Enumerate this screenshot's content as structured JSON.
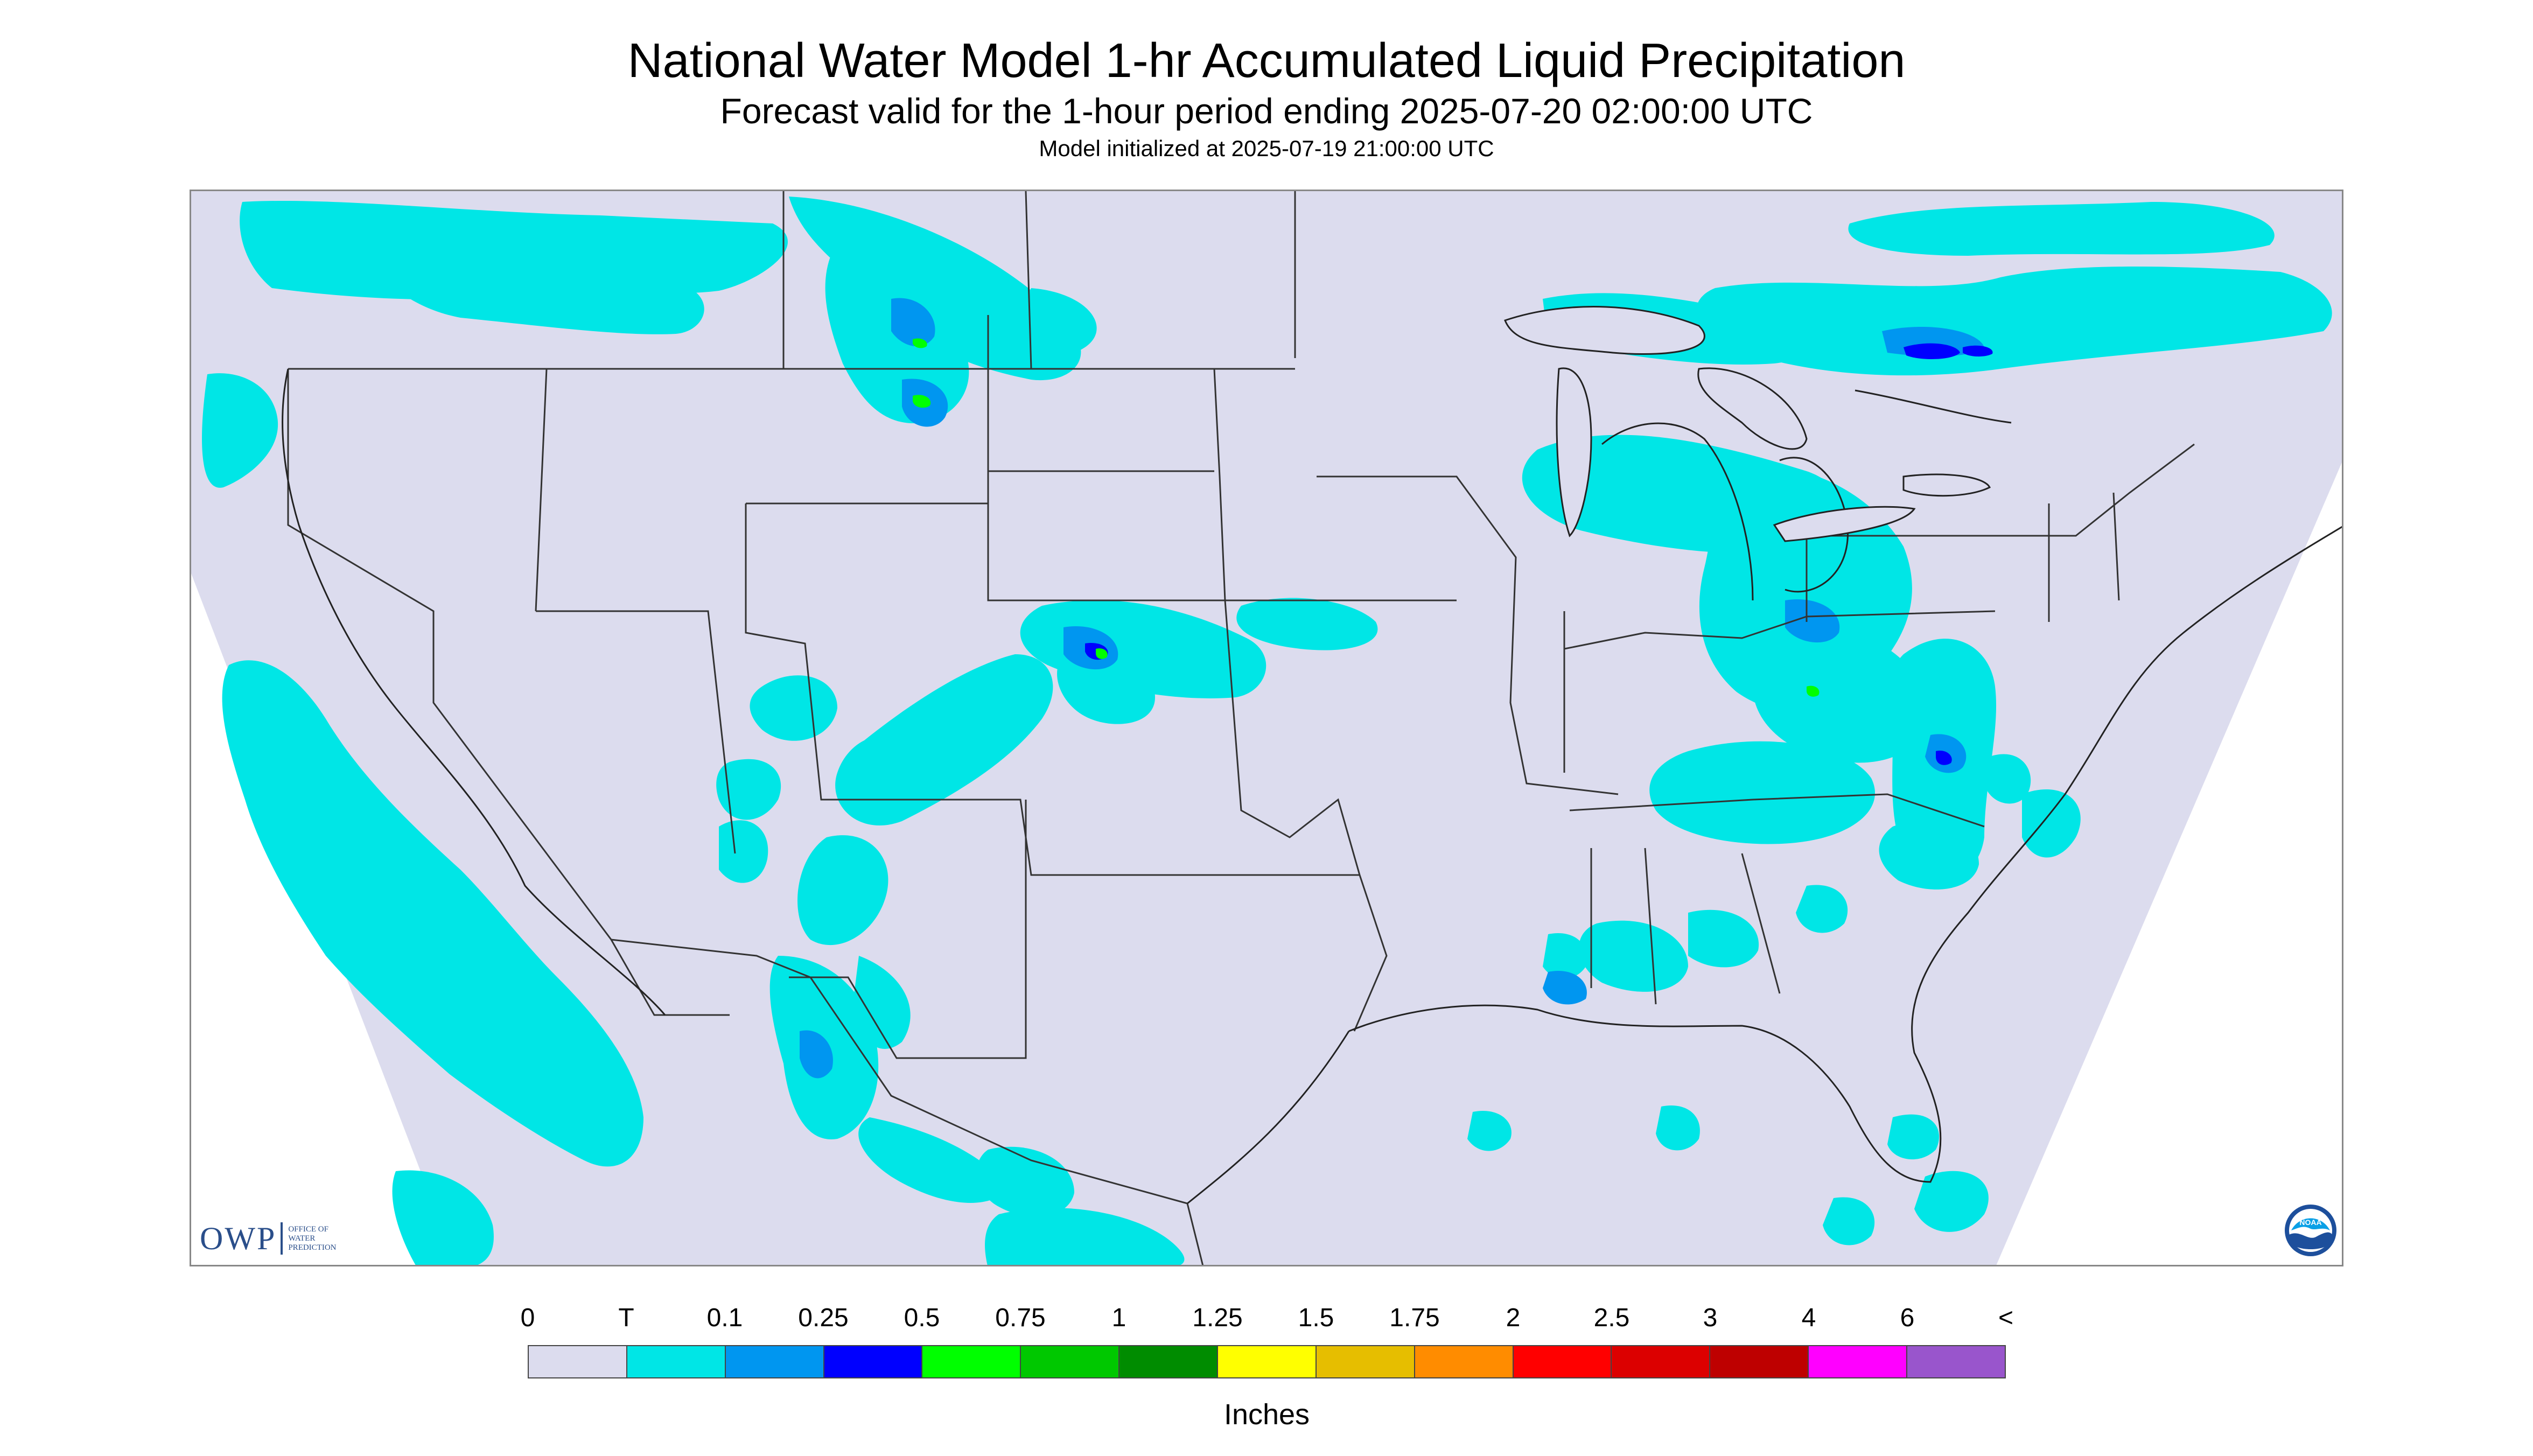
{
  "header": {
    "title": "National Water Model 1-hr Accumulated Liquid Precipitation",
    "subtitle": "Forecast valid for the 1-hour period ending 2025-07-20 02:00:00 UTC",
    "init_line": "Model initialized at 2025-07-19 21:00:00 UTC"
  },
  "logos": {
    "owp_letters": "OWP",
    "owp_text": "OFFICE OF WATER PREDICTION",
    "noaa_text": "NOAA"
  },
  "legend": {
    "units": "Inches",
    "labels": [
      "0",
      "T",
      "0.1",
      "0.25",
      "0.5",
      "0.75",
      "1",
      "1.25",
      "1.5",
      "1.75",
      "2",
      "2.5",
      "3",
      "4",
      "6",
      "<"
    ],
    "colors": [
      "#dcdcee",
      "#00e6e6",
      "#0096f0",
      "#0000ff",
      "#00ff00",
      "#00c800",
      "#008c00",
      "#ffff00",
      "#e6be00",
      "#ff8c00",
      "#ff0000",
      "#dc0000",
      "#be0000",
      "#ff00ff",
      "#9955cc"
    ]
  },
  "map": {
    "background_color": "#dcdcee",
    "offgrid_color": "#ffffff",
    "boundary_color": "#333333"
  }
}
